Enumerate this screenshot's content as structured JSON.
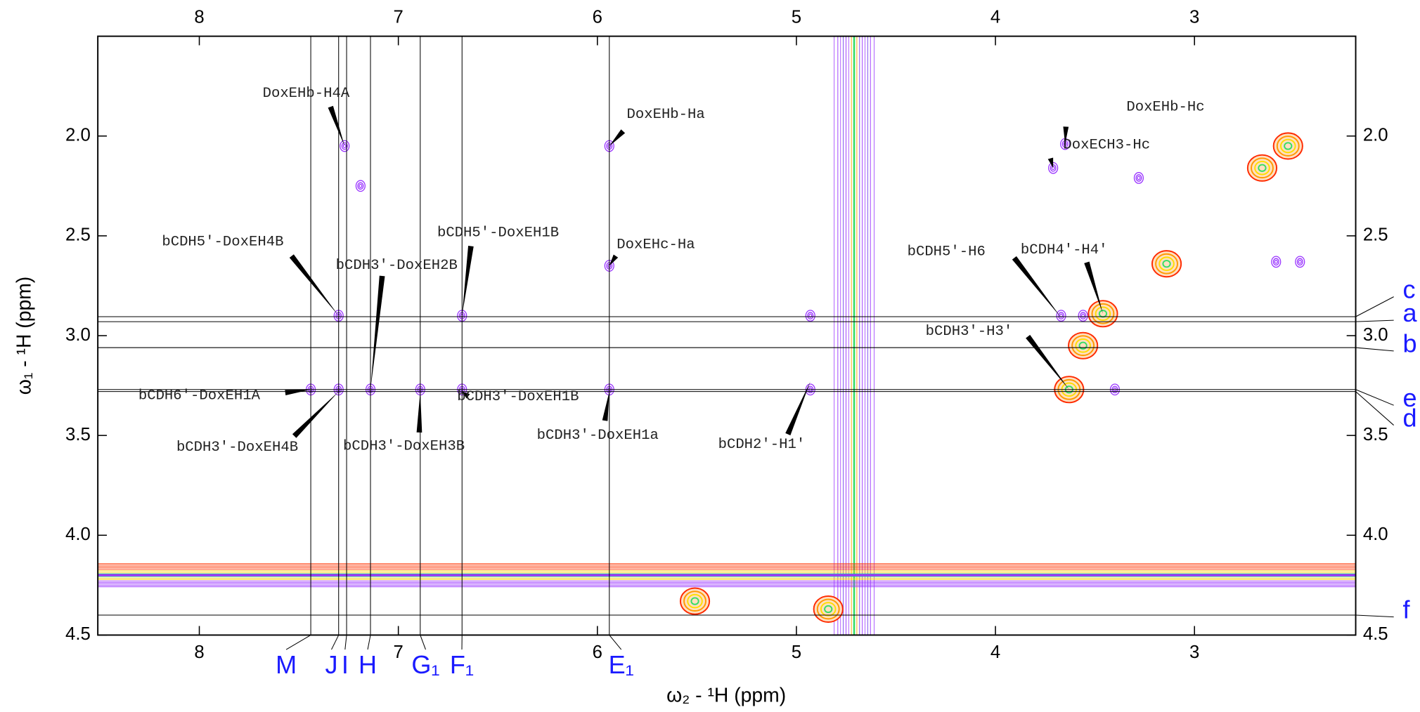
{
  "chart_data": {
    "type": "nmr2d",
    "x_label": "ω₂ - ¹H (ppm)",
    "y_label": "ω₁ - ¹H (ppm)",
    "xlim": [
      8.51,
      2.19
    ],
    "ylim": [
      1.5,
      4.5
    ],
    "xticks": [
      8,
      7,
      6,
      5,
      4,
      3
    ],
    "yticks": [
      {
        "value": 2,
        "label": "2.0"
      },
      2.5,
      {
        "value": 3,
        "label": "3.0"
      },
      3.5,
      {
        "value": 4,
        "label": "4.0"
      },
      4.5
    ],
    "peaks": {
      "color": "#9933ff",
      "x": [
        7.27,
        5.94,
        7.3,
        6.68,
        5.94,
        7.44,
        7.3,
        7.14,
        6.89,
        6.68,
        5.94,
        7.19,
        3.65,
        3.71,
        4.93,
        4.93,
        3.67,
        3.56,
        3.4,
        2.47,
        2.59,
        3.28
      ],
      "y": [
        2.05,
        2.05,
        2.9,
        2.9,
        2.65,
        3.27,
        3.27,
        3.27,
        3.27,
        3.27,
        3.27,
        2.25,
        2.04,
        2.16,
        2.9,
        3.27,
        2.9,
        2.9,
        3.27,
        2.63,
        2.63,
        2.21
      ]
    },
    "diagonal_peaks": {
      "colors": [
        "#ff2a00",
        "#ff9900",
        "#ffdd00",
        "#33dd66"
      ],
      "x": [
        2.66,
        2.53,
        3.14,
        3.46,
        3.56,
        3.63,
        4.84,
        5.51
      ],
      "y": [
        2.16,
        2.05,
        2.64,
        2.89,
        3.05,
        3.27,
        4.37,
        4.33
      ]
    },
    "ridges": {
      "x": [
        4.71
      ],
      "y": [
        4.2
      ]
    },
    "vlines": {
      "color": "#1a1aff",
      "labels": [
        "M",
        "J",
        "I",
        "H",
        "G₁",
        "F₁",
        "E₁"
      ],
      "x": [
        7.44,
        7.3,
        7.26,
        7.14,
        6.89,
        6.68,
        5.94
      ]
    },
    "hlines": {
      "color": "#1a1aff",
      "labels": [
        "c",
        "a",
        "b",
        "e",
        "d",
        "f"
      ],
      "y": [
        2.905,
        2.93,
        3.06,
        3.27,
        3.28,
        4.4
      ]
    },
    "annotations": [
      {
        "text": "DoxEHb-H4A",
        "x": 7.27,
        "y": 2.05
      },
      {
        "text": "DoxEHb-Ha",
        "x": 5.94,
        "y": 2.05
      },
      {
        "text": "bCDH5′-DoxEH4B",
        "x": 7.3,
        "y": 2.9
      },
      {
        "text": "bCDH3′-DoxEH2B",
        "x": 7.14,
        "y": 3.27
      },
      {
        "text": "bCDH5′-DoxEH1B",
        "x": 6.68,
        "y": 2.9
      },
      {
        "text": "DoxEHc-Ha",
        "x": 5.94,
        "y": 2.65
      },
      {
        "text": "bCDH6′-DoxEH1A",
        "x": 7.44,
        "y": 3.27
      },
      {
        "text": "bCDH3′-DoxEH4B",
        "x": 7.3,
        "y": 3.28
      },
      {
        "text": "bCDH3′-DoxEH3B",
        "x": 6.89,
        "y": 3.28
      },
      {
        "text": "bCDH3′-DoxEH1B",
        "x": 6.68,
        "y": 3.28
      },
      {
        "text": "bCDH3'-DoxEH1a",
        "x": 5.94,
        "y": 3.28
      },
      {
        "text": "bCDH2′-H1′",
        "x": 4.93,
        "y": 3.23
      },
      {
        "text": "bCDH5′-H6",
        "x": 3.67,
        "y": 2.91
      },
      {
        "text": "bCDH4′-H4′",
        "x": 3.46,
        "y": 2.89
      },
      {
        "text": "bCDH3′-H3′",
        "x": 3.63,
        "y": 3.27
      },
      {
        "text": "DoxECH3-Hc",
        "x": 3.71,
        "y": 2.16
      },
      {
        "text": "DoxEHb-Hc",
        "x": 3.65,
        "y": 2.04
      }
    ]
  }
}
